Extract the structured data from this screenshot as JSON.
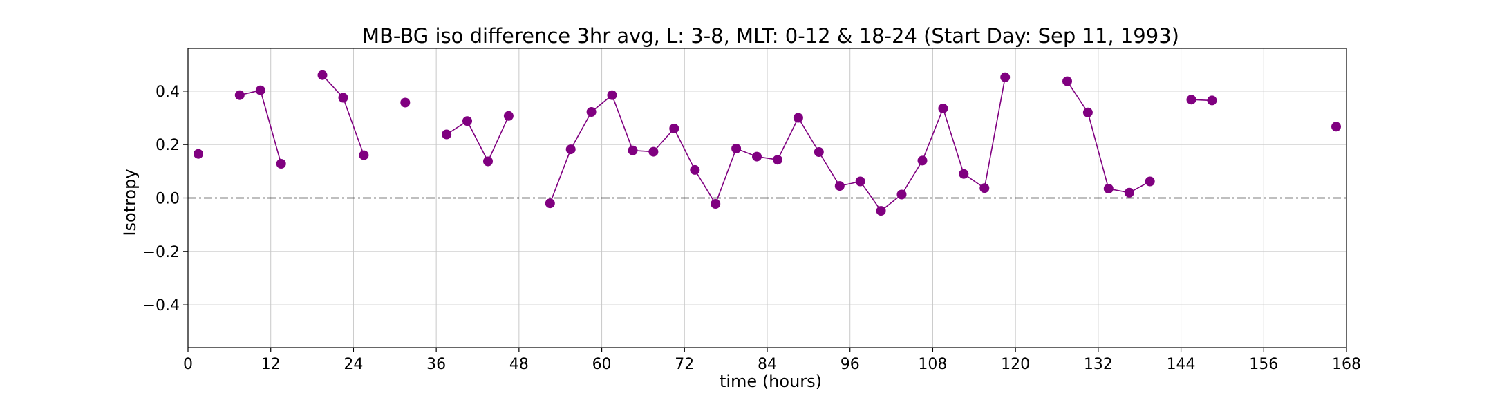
{
  "chart_data": {
    "type": "line",
    "title": "MB-BG iso difference 3hr avg, L: 3-8, MLT: 0-12 & 18-24 (Start Day: Sep 11, 1993)",
    "xlabel": "time (hours)",
    "ylabel": "Isotropy",
    "xlim": [
      0,
      168
    ],
    "ylim": [
      -0.56,
      0.56
    ],
    "xticks": [
      0,
      12,
      24,
      36,
      48,
      60,
      72,
      84,
      96,
      108,
      120,
      132,
      144,
      156,
      168
    ],
    "yticks": [
      -0.4,
      -0.2,
      0.0,
      0.2,
      0.4
    ],
    "ytick_labels": [
      "−0.4",
      "−0.2",
      "0.0",
      "0.2",
      "0.4"
    ],
    "grid": true,
    "reference_line": {
      "y": 0.0,
      "style": "dash-dot",
      "color": "#000000"
    },
    "series_color": "#800080",
    "segments": [
      {
        "x": [
          1.5
        ],
        "y": [
          0.165
        ]
      },
      {
        "x": [
          7.5,
          10.5,
          13.5
        ],
        "y": [
          0.385,
          0.403,
          0.128
        ]
      },
      {
        "x": [
          19.5,
          22.5,
          25.5
        ],
        "y": [
          0.46,
          0.375,
          0.16
        ]
      },
      {
        "x": [
          31.5
        ],
        "y": [
          0.357
        ]
      },
      {
        "x": [
          37.5,
          40.5,
          43.5,
          46.5
        ],
        "y": [
          0.238,
          0.288,
          0.137,
          0.307
        ]
      },
      {
        "x": [
          52.5,
          55.5,
          58.5,
          61.5,
          64.5,
          67.5,
          70.5,
          73.5,
          76.5,
          79.5,
          82.5,
          85.5,
          88.5,
          91.5,
          94.5,
          97.5,
          100.5,
          103.5,
          106.5,
          109.5,
          112.5,
          115.5,
          118.5
        ],
        "y": [
          -0.02,
          0.182,
          0.322,
          0.385,
          0.178,
          0.173,
          0.26,
          0.105,
          -0.022,
          0.185,
          0.155,
          0.143,
          0.3,
          0.172,
          0.045,
          0.062,
          -0.048,
          0.013,
          0.14,
          0.335,
          0.09,
          0.037,
          0.452
        ]
      },
      {
        "x": [
          127.5,
          130.5,
          133.5,
          136.5,
          139.5
        ],
        "y": [
          0.437,
          0.32,
          0.035,
          0.02,
          0.062
        ]
      },
      {
        "x": [
          145.5,
          148.5
        ],
        "y": [
          0.368,
          0.365
        ]
      },
      {
        "x": [
          166.5
        ],
        "y": [
          0.267
        ]
      }
    ]
  }
}
